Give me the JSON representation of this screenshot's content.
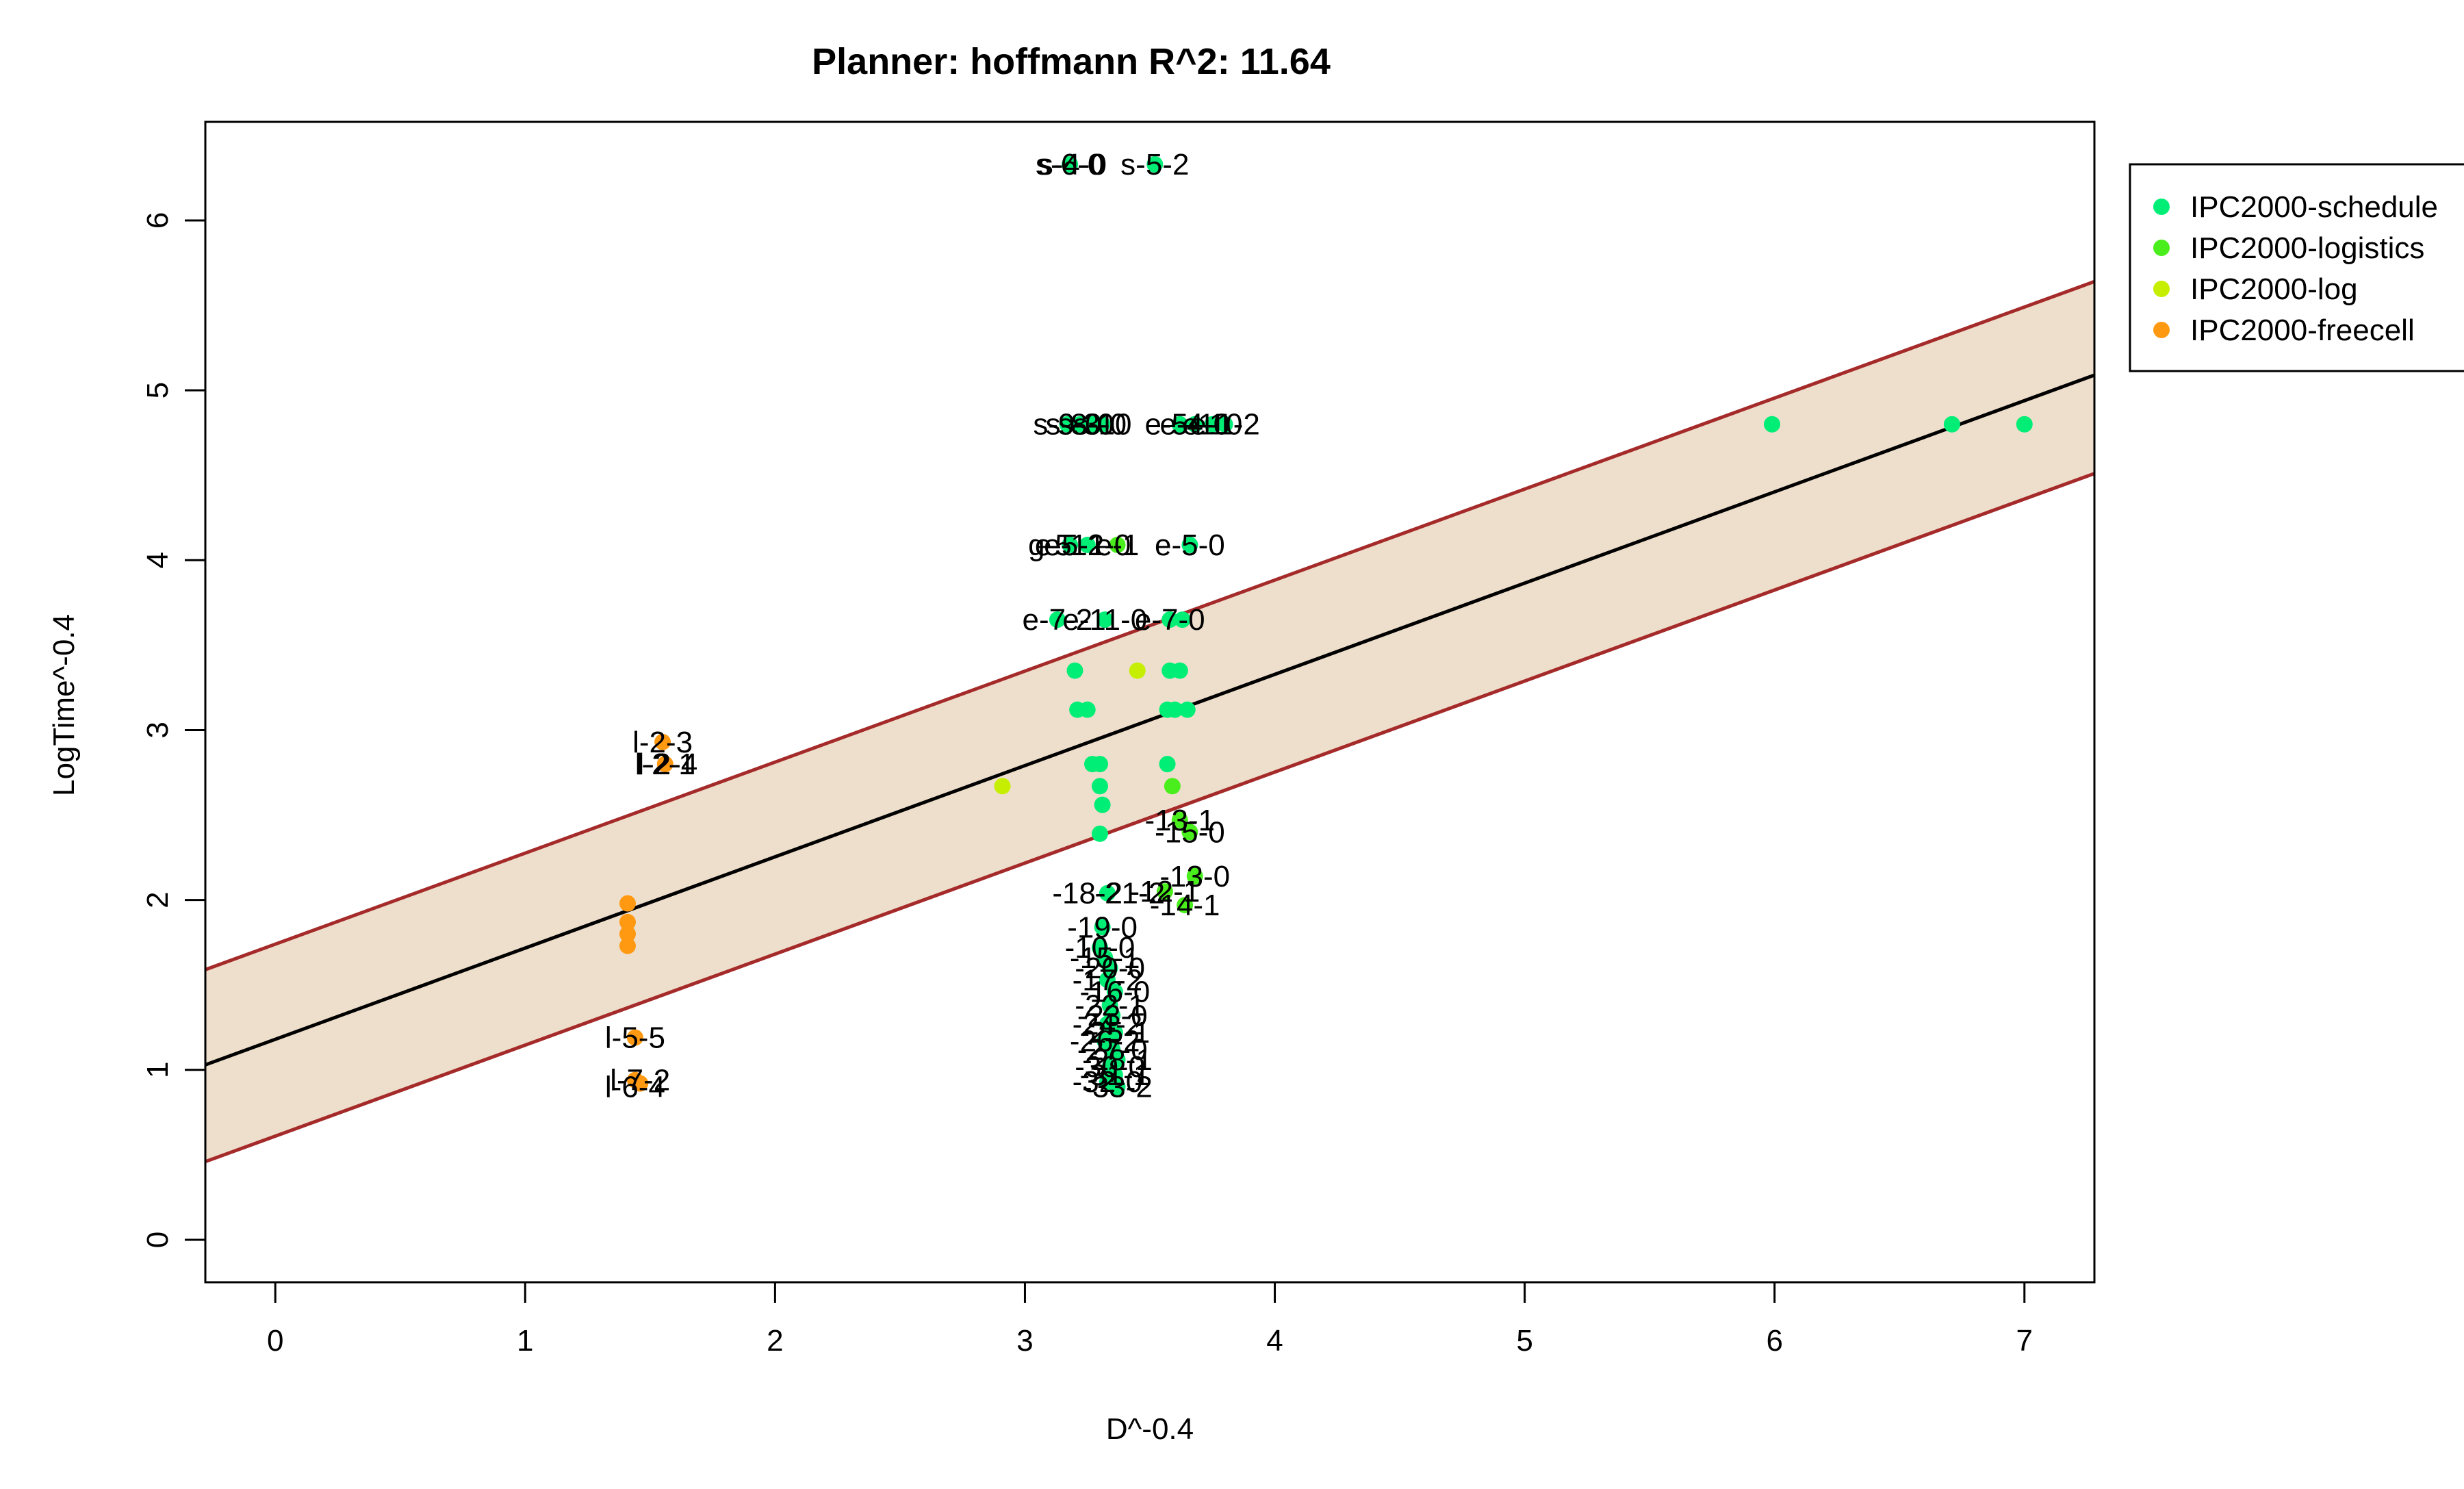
{
  "chart_data": {
    "type": "scatter",
    "title": "Planner: hoffmann R^2: 11.64",
    "xlabel": "D^-0.4",
    "ylabel": "LogTime^-0.4",
    "xlim": [
      -0.28,
      7.28
    ],
    "ylim": [
      -0.25,
      6.58
    ],
    "x_ticks": [
      0,
      1,
      2,
      3,
      4,
      5,
      6,
      7
    ],
    "y_ticks": [
      0,
      1,
      2,
      3,
      4,
      5,
      6
    ],
    "grid": false,
    "legend_position": "top-right",
    "colors": {
      "band_fill": "#EEDFCC",
      "band_edge": "#A52A2A",
      "fit_line": "#000000"
    },
    "fit_line": {
      "intercept": 1.18,
      "slope": 0.537
    },
    "band": {
      "lower": [
        [
          -0.28,
          0.46
        ],
        [
          7.28,
          4.51
        ]
      ],
      "upper": [
        [
          -0.28,
          1.59
        ],
        [
          7.28,
          5.64
        ]
      ]
    },
    "series": [
      {
        "name": "IPC2000-schedule",
        "color": "#00EE76",
        "points": [
          [
            3.18,
            6.33
          ],
          [
            3.52,
            6.33
          ],
          [
            3.17,
            4.8
          ],
          [
            3.22,
            4.8
          ],
          [
            3.27,
            4.8
          ],
          [
            3.31,
            4.8
          ],
          [
            3.62,
            4.8
          ],
          [
            3.68,
            4.8
          ],
          [
            3.75,
            4.8
          ],
          [
            3.8,
            4.8
          ],
          [
            5.99,
            4.8
          ],
          [
            6.71,
            4.8
          ],
          [
            7.0,
            4.8
          ],
          [
            3.18,
            4.09
          ],
          [
            3.25,
            4.09
          ],
          [
            3.66,
            4.09
          ],
          [
            3.13,
            3.65
          ],
          [
            3.32,
            3.65
          ],
          [
            3.58,
            3.65
          ],
          [
            3.63,
            3.65
          ],
          [
            3.2,
            3.35
          ],
          [
            3.58,
            3.35
          ],
          [
            3.62,
            3.35
          ],
          [
            3.21,
            3.12
          ],
          [
            3.25,
            3.12
          ],
          [
            3.57,
            3.12
          ],
          [
            3.6,
            3.12
          ],
          [
            3.65,
            3.12
          ],
          [
            3.27,
            2.8
          ],
          [
            3.3,
            2.8
          ],
          [
            3.57,
            2.8
          ],
          [
            3.3,
            2.67
          ],
          [
            3.31,
            2.56
          ],
          [
            3.3,
            2.39
          ],
          [
            3.33,
            2.04
          ],
          [
            3.31,
            1.84
          ],
          [
            3.3,
            1.72
          ],
          [
            3.32,
            1.66
          ],
          [
            3.34,
            1.6
          ],
          [
            3.33,
            1.53
          ],
          [
            3.36,
            1.46
          ],
          [
            3.34,
            1.38
          ],
          [
            3.35,
            1.32
          ],
          [
            3.33,
            1.27
          ],
          [
            3.36,
            1.22
          ],
          [
            3.32,
            1.17
          ],
          [
            3.35,
            1.12
          ],
          [
            3.37,
            1.06
          ],
          [
            3.34,
            1.02
          ],
          [
            3.36,
            0.97
          ],
          [
            3.33,
            0.93
          ],
          [
            3.37,
            0.9
          ]
        ]
      },
      {
        "name": "IPC2000-logistics",
        "color": "#4AEE1C",
        "points": [
          [
            3.37,
            4.09
          ],
          [
            3.62,
            2.47
          ],
          [
            3.66,
            2.4
          ],
          [
            3.68,
            2.14
          ],
          [
            3.56,
            2.05
          ],
          [
            3.64,
            1.97
          ],
          [
            3.59,
            2.67
          ]
        ]
      },
      {
        "name": "IPC2000-log",
        "color": "#C6EE00",
        "points": [
          [
            2.91,
            2.67
          ],
          [
            3.45,
            3.35
          ]
        ]
      },
      {
        "name": "IPC2000-freecell",
        "color": "#FF9912",
        "points": [
          [
            1.41,
            1.98
          ],
          [
            1.41,
            1.87
          ],
          [
            1.41,
            1.8
          ],
          [
            1.41,
            1.73
          ],
          [
            1.55,
            2.93
          ],
          [
            1.56,
            2.8
          ],
          [
            1.44,
            1.19
          ],
          [
            1.44,
            0.94
          ],
          [
            1.46,
            0.92
          ]
        ]
      }
    ],
    "annotations": [
      {
        "text": "s-6-0",
        "x": 3.18,
        "y": 6.33
      },
      {
        "text": "s-4-0",
        "x": 3.19,
        "y": 6.33
      },
      {
        "text": "s-5-2",
        "x": 3.52,
        "y": 6.33
      },
      {
        "text": "s-9-0",
        "x": 3.17,
        "y": 4.8
      },
      {
        "text": "s-8-0",
        "x": 3.22,
        "y": 4.8
      },
      {
        "text": "s-3-0",
        "x": 3.27,
        "y": 4.8
      },
      {
        "text": "s-10",
        "x": 3.31,
        "y": 4.8
      },
      {
        "text": "e-5-1",
        "x": 3.62,
        "y": 4.8
      },
      {
        "text": "e-4-0",
        "x": 3.68,
        "y": 4.8
      },
      {
        "text": "e-10",
        "x": 3.75,
        "y": 4.8
      },
      {
        "text": "e-1-2",
        "x": 3.8,
        "y": 4.8
      },
      {
        "text": "g-5",
        "x": 3.1,
        "y": 4.09
      },
      {
        "text": "e-5-1",
        "x": 3.18,
        "y": 4.09
      },
      {
        "text": "e-12-0",
        "x": 3.25,
        "y": 4.09
      },
      {
        "text": "e-1",
        "x": 3.37,
        "y": 4.09
      },
      {
        "text": "e-5-0",
        "x": 3.66,
        "y": 4.09
      },
      {
        "text": "e-7-2",
        "x": 3.13,
        "y": 3.65
      },
      {
        "text": "e-11-0",
        "x": 3.32,
        "y": 3.65
      },
      {
        "text": "e-7-0",
        "x": 3.58,
        "y": 3.65
      },
      {
        "text": "-13-1",
        "x": 3.62,
        "y": 2.47
      },
      {
        "text": "-15-0",
        "x": 3.66,
        "y": 2.4
      },
      {
        "text": "-13-0",
        "x": 3.68,
        "y": 2.14
      },
      {
        "text": "-18-2",
        "x": 3.25,
        "y": 2.04
      },
      {
        "text": "-21-2",
        "x": 3.42,
        "y": 2.04
      },
      {
        "text": "-12-1",
        "x": 3.56,
        "y": 2.05
      },
      {
        "text": "-14-1",
        "x": 3.64,
        "y": 1.97
      },
      {
        "text": "-19-0",
        "x": 3.31,
        "y": 1.84
      },
      {
        "text": "-10-0",
        "x": 3.3,
        "y": 1.72
      },
      {
        "text": "-15-1",
        "x": 3.32,
        "y": 1.66
      },
      {
        "text": "-20-0",
        "x": 3.34,
        "y": 1.6
      },
      {
        "text": "-17-2",
        "x": 3.33,
        "y": 1.53
      },
      {
        "text": "-16-0",
        "x": 3.36,
        "y": 1.46
      },
      {
        "text": "-22-1",
        "x": 3.34,
        "y": 1.38
      },
      {
        "text": "-23-0",
        "x": 3.35,
        "y": 1.32
      },
      {
        "text": "-24-2",
        "x": 3.33,
        "y": 1.27
      },
      {
        "text": "-25-1",
        "x": 3.36,
        "y": 1.22
      },
      {
        "text": "-26-2",
        "x": 3.32,
        "y": 1.17
      },
      {
        "text": "-27-0",
        "x": 3.35,
        "y": 1.12
      },
      {
        "text": "-28-1",
        "x": 3.37,
        "y": 1.06
      },
      {
        "text": "-30-0",
        "x": 3.34,
        "y": 1.02
      },
      {
        "text": "-31-1",
        "x": 3.36,
        "y": 0.97
      },
      {
        "text": "-32-0",
        "x": 3.33,
        "y": 0.93
      },
      {
        "text": "-33-2",
        "x": 3.37,
        "y": 0.9
      },
      {
        "text": "l-2-3",
        "x": 1.55,
        "y": 2.93
      },
      {
        "text": "l-2-1",
        "x": 1.56,
        "y": 2.8
      },
      {
        "text": "l-2-4",
        "x": 1.57,
        "y": 2.8
      },
      {
        "text": "l-5-5",
        "x": 1.44,
        "y": 1.19
      },
      {
        "text": "l-7-2",
        "x": 1.46,
        "y": 0.94
      },
      {
        "text": "l-6-4",
        "x": 1.44,
        "y": 0.9
      }
    ]
  }
}
